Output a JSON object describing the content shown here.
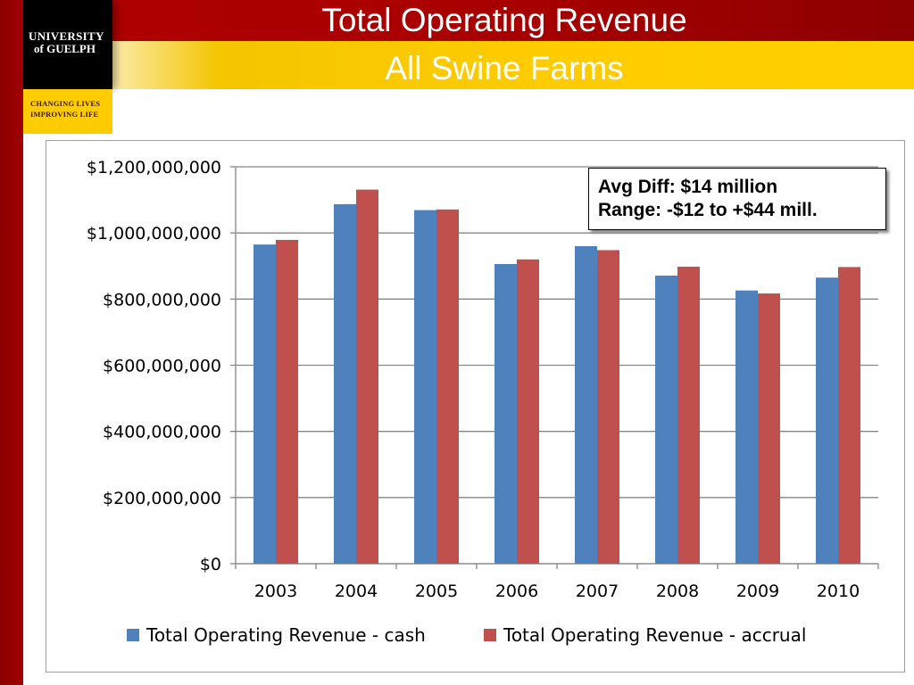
{
  "slide": {
    "title": "Total Operating Revenue",
    "subtitle": "All Swine Farms",
    "logo": {
      "line1": "UNIVERSITY",
      "line2": "of GUELPH"
    },
    "tagline": {
      "line1": "Changing Lives",
      "line2": "Improving Life"
    },
    "colors": {
      "red": "#a80000",
      "gold": "#ffcc00"
    }
  },
  "annotation": {
    "line1": "Avg Diff: $14 million",
    "line2": "Range: -$12 to +$44 mill."
  },
  "chart_data": {
    "type": "bar",
    "categories": [
      "2003",
      "2004",
      "2005",
      "2006",
      "2007",
      "2008",
      "2009",
      "2010"
    ],
    "series": [
      {
        "name": "Total Operating Revenue - cash",
        "color": "#4f81bd",
        "values": [
          965000000,
          1087000000,
          1069000000,
          906000000,
          960000000,
          871000000,
          826000000,
          865000000
        ]
      },
      {
        "name": "Total Operating Revenue - accrual",
        "color": "#c0504d",
        "values": [
          979000000,
          1131000000,
          1071000000,
          920000000,
          948000000,
          898000000,
          817000000,
          897000000
        ]
      }
    ],
    "ylim": [
      0,
      1200000000
    ],
    "yticks": [
      0,
      200000000,
      400000000,
      600000000,
      800000000,
      1000000000,
      1200000000
    ],
    "ytick_labels": [
      "$0",
      "$200,000,000",
      "$400,000,000",
      "$600,000,000",
      "$800,000,000",
      "$1,000,000,000",
      "$1,200,000,000"
    ],
    "grid": true,
    "legend": "bottom"
  }
}
